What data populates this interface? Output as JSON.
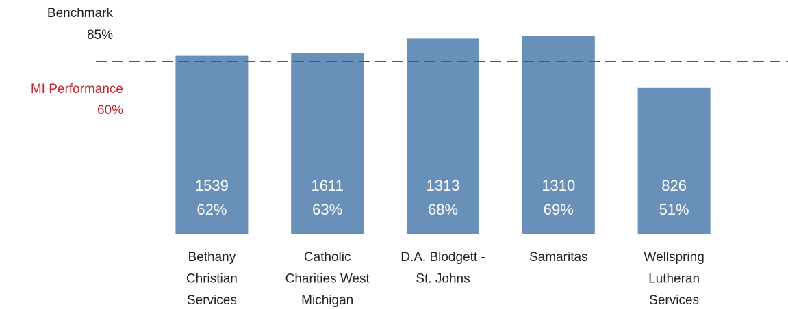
{
  "chart_data": {
    "type": "bar",
    "categories": [
      "Bethany Christian Services",
      "Catholic Charities West Michigan",
      "D.A. Blodgett - St. Johns",
      "Samaritas",
      "Wellspring Lutheran Services"
    ],
    "values": [
      62,
      63,
      68,
      69,
      51
    ],
    "value_labels": [
      "62%",
      "63%",
      "68%",
      "69%",
      "51%"
    ],
    "counts": [
      1539,
      1611,
      1313,
      1310,
      826
    ],
    "color": "#6890b8",
    "ylim": [
      0,
      80
    ],
    "reference_lines": [
      {
        "name": "Benchmark",
        "value": 85,
        "value_label": "85%",
        "color": "#222222",
        "visible": false
      },
      {
        "name": "MI Performance",
        "value": 60,
        "value_label": "60%",
        "color": "#c0282d",
        "visible": true
      }
    ]
  }
}
